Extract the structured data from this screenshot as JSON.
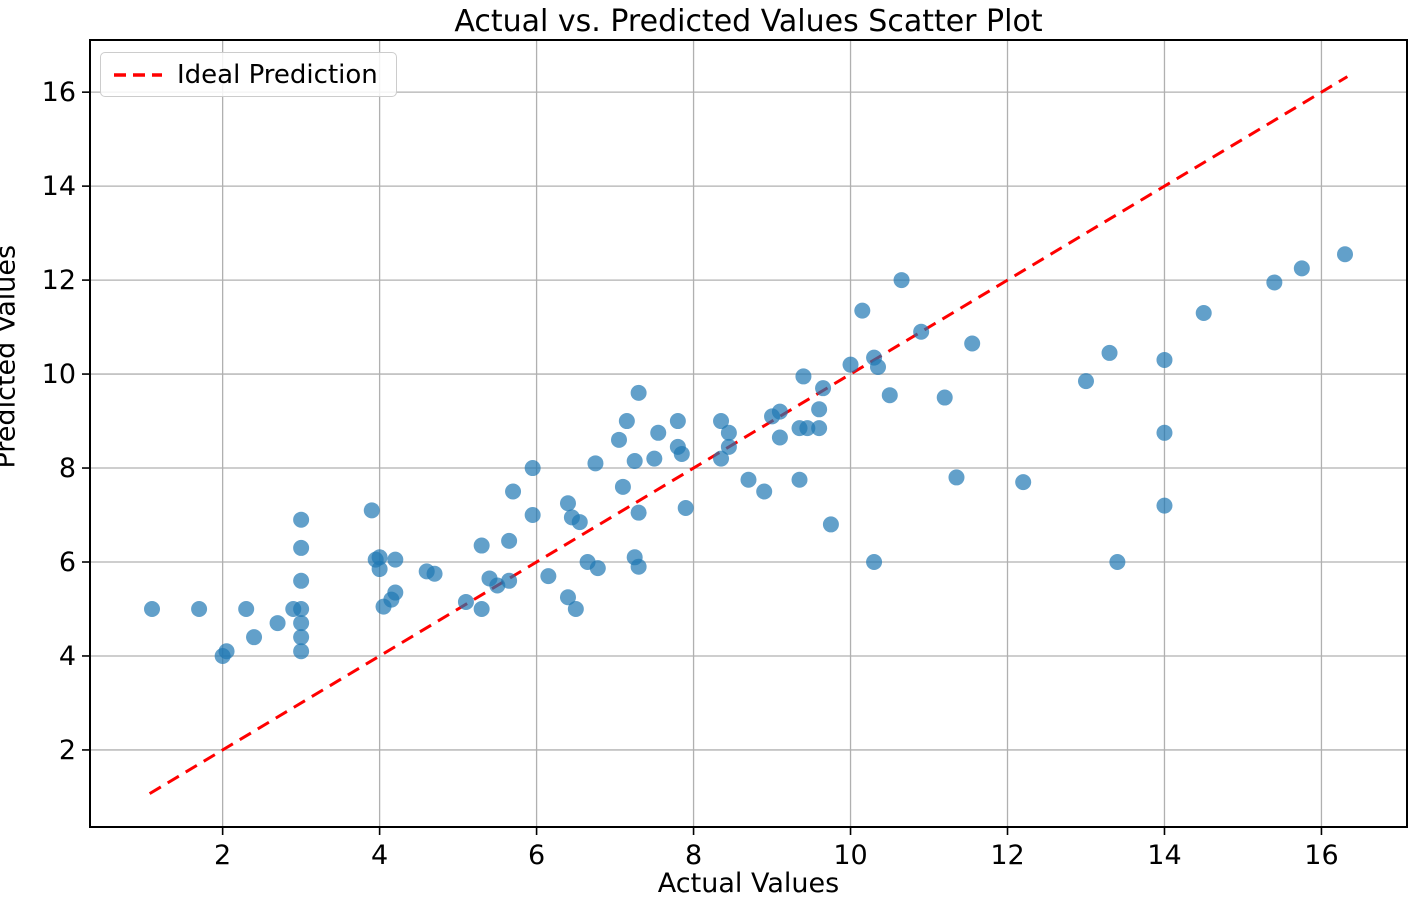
{
  "chart_data": {
    "type": "scatter",
    "title": "Actual vs. Predicted Values Scatter Plot",
    "xlabel": "Actual Values",
    "ylabel": "Predicted Values",
    "xlim": [
      0.31,
      17.09
    ],
    "ylim": [
      0.36,
      17.11
    ],
    "xticks": [
      2,
      4,
      6,
      8,
      10,
      12,
      14,
      16
    ],
    "yticks": [
      2,
      4,
      6,
      8,
      10,
      12,
      14,
      16
    ],
    "grid": true,
    "legend": {
      "label": "Ideal Prediction",
      "position": "upper left"
    },
    "colors": {
      "scatter": "#1f77b4",
      "scatter_opacity": 0.7,
      "ideal_line": "#ff0000",
      "grid": "#b0b0b0",
      "spine": "#000000"
    },
    "ideal_line": {
      "x": [
        1.07,
        16.33
      ],
      "y": [
        1.07,
        16.33
      ],
      "style": "dashed"
    },
    "points": [
      [
        1.1,
        5.0
      ],
      [
        1.7,
        5.0
      ],
      [
        2.0,
        4.0
      ],
      [
        2.05,
        4.1
      ],
      [
        2.3,
        5.0
      ],
      [
        2.4,
        4.4
      ],
      [
        2.7,
        4.7
      ],
      [
        2.9,
        5.0
      ],
      [
        3.0,
        5.0
      ],
      [
        3.0,
        6.9
      ],
      [
        3.0,
        6.3
      ],
      [
        3.0,
        5.6
      ],
      [
        3.0,
        4.7
      ],
      [
        3.0,
        4.4
      ],
      [
        3.0,
        4.1
      ],
      [
        3.9,
        7.1
      ],
      [
        3.95,
        6.05
      ],
      [
        4.0,
        6.1
      ],
      [
        4.0,
        5.85
      ],
      [
        4.2,
        6.05
      ],
      [
        4.2,
        5.35
      ],
      [
        4.15,
        5.2
      ],
      [
        4.05,
        5.05
      ],
      [
        4.6,
        5.8
      ],
      [
        4.7,
        5.75
      ],
      [
        5.1,
        5.15
      ],
      [
        5.3,
        5.0
      ],
      [
        5.3,
        6.35
      ],
      [
        5.4,
        5.65
      ],
      [
        5.5,
        5.5
      ],
      [
        5.65,
        5.6
      ],
      [
        5.7,
        7.5
      ],
      [
        5.65,
        6.45
      ],
      [
        5.95,
        8.0
      ],
      [
        5.95,
        7.0
      ],
      [
        6.15,
        5.7
      ],
      [
        6.4,
        7.25
      ],
      [
        6.45,
        6.95
      ],
      [
        6.55,
        6.85
      ],
      [
        6.4,
        5.25
      ],
      [
        6.5,
        5.0
      ],
      [
        6.65,
        6.0
      ],
      [
        6.78,
        5.87
      ],
      [
        6.75,
        8.1
      ],
      [
        7.05,
        8.6
      ],
      [
        7.1,
        7.6
      ],
      [
        7.15,
        9.0
      ],
      [
        7.25,
        8.15
      ],
      [
        7.3,
        9.6
      ],
      [
        7.3,
        7.05
      ],
      [
        7.25,
        6.1
      ],
      [
        7.3,
        5.9
      ],
      [
        7.5,
        8.2
      ],
      [
        7.55,
        8.75
      ],
      [
        7.8,
        9.0
      ],
      [
        7.8,
        8.45
      ],
      [
        7.85,
        8.3
      ],
      [
        7.9,
        7.15
      ],
      [
        8.35,
        9.0
      ],
      [
        8.45,
        8.75
      ],
      [
        8.45,
        8.45
      ],
      [
        8.35,
        8.2
      ],
      [
        8.7,
        7.75
      ],
      [
        8.9,
        7.5
      ],
      [
        9.0,
        9.1
      ],
      [
        9.1,
        9.2
      ],
      [
        9.1,
        8.65
      ],
      [
        9.35,
        8.85
      ],
      [
        9.45,
        8.85
      ],
      [
        9.6,
        8.85
      ],
      [
        9.35,
        7.75
      ],
      [
        9.4,
        9.95
      ],
      [
        9.6,
        9.25
      ],
      [
        9.65,
        9.7
      ],
      [
        9.75,
        6.8
      ],
      [
        10.0,
        10.2
      ],
      [
        10.15,
        11.35
      ],
      [
        10.3,
        10.35
      ],
      [
        10.35,
        10.15
      ],
      [
        10.3,
        6.0
      ],
      [
        10.5,
        9.55
      ],
      [
        10.65,
        12.0
      ],
      [
        10.9,
        10.9
      ],
      [
        11.2,
        9.5
      ],
      [
        11.35,
        7.8
      ],
      [
        11.55,
        10.65
      ],
      [
        12.2,
        7.7
      ],
      [
        13.0,
        9.85
      ],
      [
        13.3,
        10.45
      ],
      [
        13.4,
        6.0
      ],
      [
        14.0,
        10.3
      ],
      [
        14.0,
        8.75
      ],
      [
        14.0,
        7.2
      ],
      [
        14.5,
        11.3
      ],
      [
        15.4,
        11.95
      ],
      [
        15.75,
        12.25
      ],
      [
        16.3,
        12.55
      ]
    ]
  }
}
